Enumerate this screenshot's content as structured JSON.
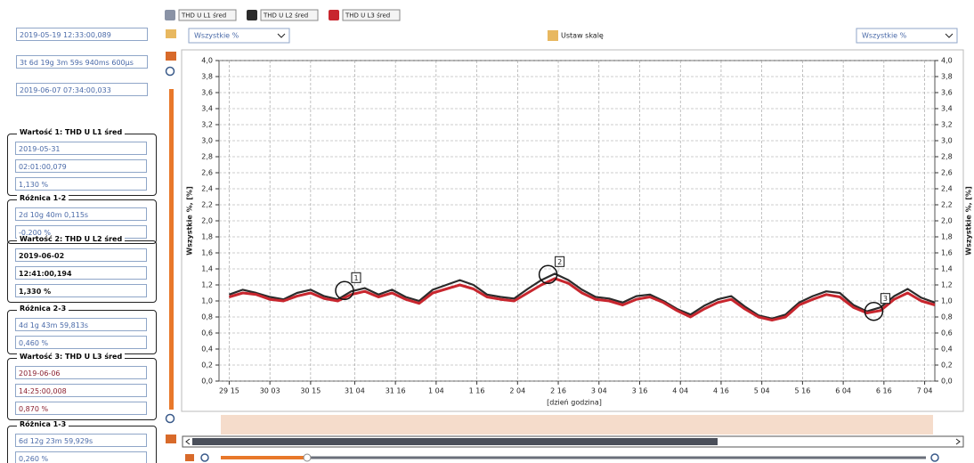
{
  "left_panel": {
    "cursor_time": "2019-05-19 12:33:00,089",
    "span": "3t 6d 19g 3m 59s 940ms 600µs",
    "end_time": "2019-06-07 07:34:00,033",
    "groups": [
      {
        "title": "Wartość 1: THD U L1 śred",
        "fields": [
          "2019-05-31",
          "02:01:00,079",
          "1,130 %"
        ]
      },
      {
        "title": "Różnica 1-2",
        "fields": [
          "2d 10g 40m 0,115s",
          "-0,200 %"
        ]
      },
      {
        "title": "Wartość 2: THD U L2 śred",
        "fields": [
          "2019-06-02",
          "12:41:00,194",
          "1,330 %"
        ]
      },
      {
        "title": "Różnica 2-3",
        "fields": [
          "4d 1g 43m 59,813s",
          "0,460 %"
        ]
      },
      {
        "title": "Wartość 3: THD U L3 śred",
        "fields": [
          "2019-06-06",
          "14:25:00,008",
          "0,870 %"
        ]
      },
      {
        "title": "Różnica 1-3",
        "fields": [
          "6d 12g 23m 59,929s",
          "0,260 %"
        ]
      }
    ]
  },
  "toolbar": {
    "left_select": "Wszystkie %",
    "scale_button": "Ustaw skalę",
    "right_select": "Wszystkie %"
  },
  "chart_data": {
    "type": "line",
    "legend": [
      {
        "name": "THD U L1 śred",
        "color": "#8a93a6"
      },
      {
        "name": "THD U L2 śred",
        "color": "#2b2b2b"
      },
      {
        "name": "THD U L3 śred",
        "color": "#c8262e"
      }
    ],
    "ylabel": "Wszystkie %, [%]",
    "xlabel": "[dzień godzina]",
    "x": [
      0,
      4,
      8,
      12,
      16,
      20,
      24,
      28,
      32,
      36,
      40,
      44,
      48,
      52,
      56,
      60,
      64,
      68,
      72,
      76,
      80,
      84,
      88,
      92,
      96,
      100,
      104,
      108,
      112,
      116,
      120,
      124,
      128,
      132,
      136,
      140,
      144,
      148,
      152,
      156,
      160,
      164,
      168,
      172,
      176,
      180,
      184,
      188,
      192,
      196,
      200,
      204,
      208
    ],
    "series": [
      {
        "color": "#2b2b2b",
        "values": [
          1.08,
          1.14,
          1.1,
          1.05,
          1.02,
          1.1,
          1.14,
          1.06,
          1.02,
          1.12,
          1.16,
          1.08,
          1.14,
          1.05,
          1.0,
          1.14,
          1.2,
          1.26,
          1.2,
          1.08,
          1.05,
          1.03,
          1.15,
          1.26,
          1.34,
          1.26,
          1.14,
          1.05,
          1.03,
          0.98,
          1.06,
          1.08,
          1.0,
          0.9,
          0.83,
          0.94,
          1.02,
          1.06,
          0.93,
          0.82,
          0.78,
          0.83,
          0.98,
          1.06,
          1.12,
          1.1,
          0.95,
          0.87,
          0.92,
          1.06,
          1.15,
          1.04,
          0.98
        ]
      },
      {
        "color": "#c8262e",
        "values": [
          1.05,
          1.1,
          1.08,
          1.02,
          1.0,
          1.06,
          1.1,
          1.03,
          1.0,
          1.08,
          1.12,
          1.05,
          1.1,
          1.02,
          0.97,
          1.1,
          1.15,
          1.2,
          1.15,
          1.05,
          1.02,
          1.0,
          1.1,
          1.2,
          1.28,
          1.22,
          1.1,
          1.02,
          1.0,
          0.95,
          1.02,
          1.05,
          0.98,
          0.88,
          0.8,
          0.9,
          0.98,
          1.02,
          0.9,
          0.8,
          0.76,
          0.8,
          0.95,
          1.02,
          1.08,
          1.05,
          0.92,
          0.85,
          0.88,
          1.02,
          1.1,
          1.0,
          0.95
        ]
      }
    ],
    "xlim": [
      -3,
      208
    ],
    "xticks": [
      {
        "value": 0,
        "label": "29 15"
      },
      {
        "value": 12,
        "label": "30 03"
      },
      {
        "value": 24,
        "label": "30 15"
      },
      {
        "value": 37,
        "label": "31 04"
      },
      {
        "value": 49,
        "label": "31 16"
      },
      {
        "value": 61,
        "label": "1 04"
      },
      {
        "value": 73,
        "label": "1 16"
      },
      {
        "value": 85,
        "label": "2 04"
      },
      {
        "value": 97,
        "label": "2 16"
      },
      {
        "value": 109,
        "label": "3 04"
      },
      {
        "value": 121,
        "label": "3 16"
      },
      {
        "value": 133,
        "label": "4 04"
      },
      {
        "value": 145,
        "label": "4 16"
      },
      {
        "value": 157,
        "label": "5 04"
      },
      {
        "value": 169,
        "label": "5 16"
      },
      {
        "value": 181,
        "label": "6 04"
      },
      {
        "value": 193,
        "label": "6 16"
      },
      {
        "value": 205,
        "label": "7 04"
      }
    ],
    "ylim": [
      0,
      4
    ],
    "yticks": [
      {
        "value": 0,
        "label": "0,0"
      },
      {
        "value": 0.2,
        "label": "0,2"
      },
      {
        "value": 0.4,
        "label": "0,4"
      },
      {
        "value": 0.6,
        "label": "0,6"
      },
      {
        "value": 0.8,
        "label": "0,8"
      },
      {
        "value": 1,
        "label": "1,0"
      },
      {
        "value": 1.2,
        "label": "1,2"
      },
      {
        "value": 1.4,
        "label": "1,4"
      },
      {
        "value": 1.6,
        "label": "1,6"
      },
      {
        "value": 1.8,
        "label": "1,8"
      },
      {
        "value": 2,
        "label": "2,0"
      },
      {
        "value": 2.2,
        "label": "2,2"
      },
      {
        "value": 2.4,
        "label": "2,4"
      },
      {
        "value": 2.6,
        "label": "2,6"
      },
      {
        "value": 2.8,
        "label": "2,8"
      },
      {
        "value": 3,
        "label": "3,0"
      },
      {
        "value": 3.2,
        "label": "3,2"
      },
      {
        "value": 3.4,
        "label": "3,4"
      },
      {
        "value": 3.6,
        "label": "3,6"
      },
      {
        "value": 3.8,
        "label": "3,8"
      },
      {
        "value": 4,
        "label": "4,0"
      }
    ],
    "grid": true,
    "markers": [
      {
        "label": "1",
        "x": 34,
        "y": 1.13
      },
      {
        "label": "2",
        "x": 94,
        "y": 1.33
      },
      {
        "label": "3",
        "x": 190,
        "y": 0.87
      }
    ]
  }
}
